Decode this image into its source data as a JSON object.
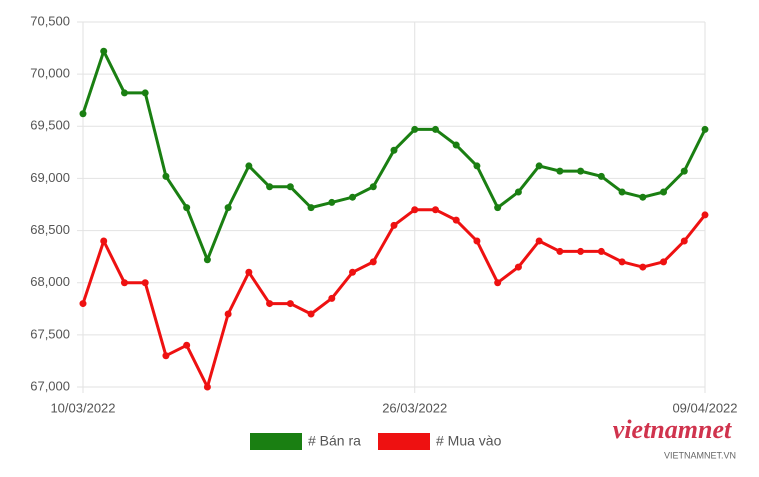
{
  "chart_data": {
    "type": "line",
    "categories": [
      "10/03/2022",
      null,
      null,
      null,
      null,
      null,
      null,
      null,
      null,
      null,
      null,
      null,
      null,
      null,
      null,
      null,
      "26/03/2022",
      null,
      null,
      null,
      null,
      null,
      null,
      null,
      null,
      null,
      null,
      null,
      null,
      null,
      "09/04/2022"
    ],
    "series": [
      {
        "name": "# Bán ra",
        "color": "#1a7f12",
        "values": [
          69620,
          70220,
          69820,
          69820,
          69020,
          68720,
          68220,
          68720,
          69120,
          68920,
          68920,
          68720,
          68770,
          68820,
          68920,
          69270,
          69470,
          69470,
          69320,
          69120,
          68720,
          68870,
          69120,
          69070,
          69070,
          69020,
          68870,
          68820,
          68870,
          69070,
          69470
        ]
      },
      {
        "name": "# Mua vào",
        "color": "#ee1111",
        "values": [
          67800,
          68400,
          68000,
          68000,
          67300,
          67400,
          67000,
          67700,
          68100,
          67800,
          67800,
          67700,
          67850,
          68100,
          68200,
          68550,
          68700,
          68700,
          68600,
          68400,
          68000,
          68150,
          68400,
          68300,
          68300,
          68300,
          68200,
          68150,
          68200,
          68400,
          68650
        ]
      }
    ],
    "ylim": [
      67000,
      70500
    ],
    "yticks": [
      {
        "value": 67000,
        "label": "67,000"
      },
      {
        "value": 67500,
        "label": "67,500"
      },
      {
        "value": 68000,
        "label": "68,000"
      },
      {
        "value": 68500,
        "label": "68,500"
      },
      {
        "value": 69000,
        "label": "69,000"
      },
      {
        "value": 69500,
        "label": "69,500"
      },
      {
        "value": 70000,
        "label": "70,000"
      },
      {
        "value": 70500,
        "label": "70,500"
      }
    ],
    "grid": true,
    "legend": "bottom",
    "watermark": {
      "brand": "vietnamnet",
      "site": "VIETNAMNET.VN"
    }
  }
}
